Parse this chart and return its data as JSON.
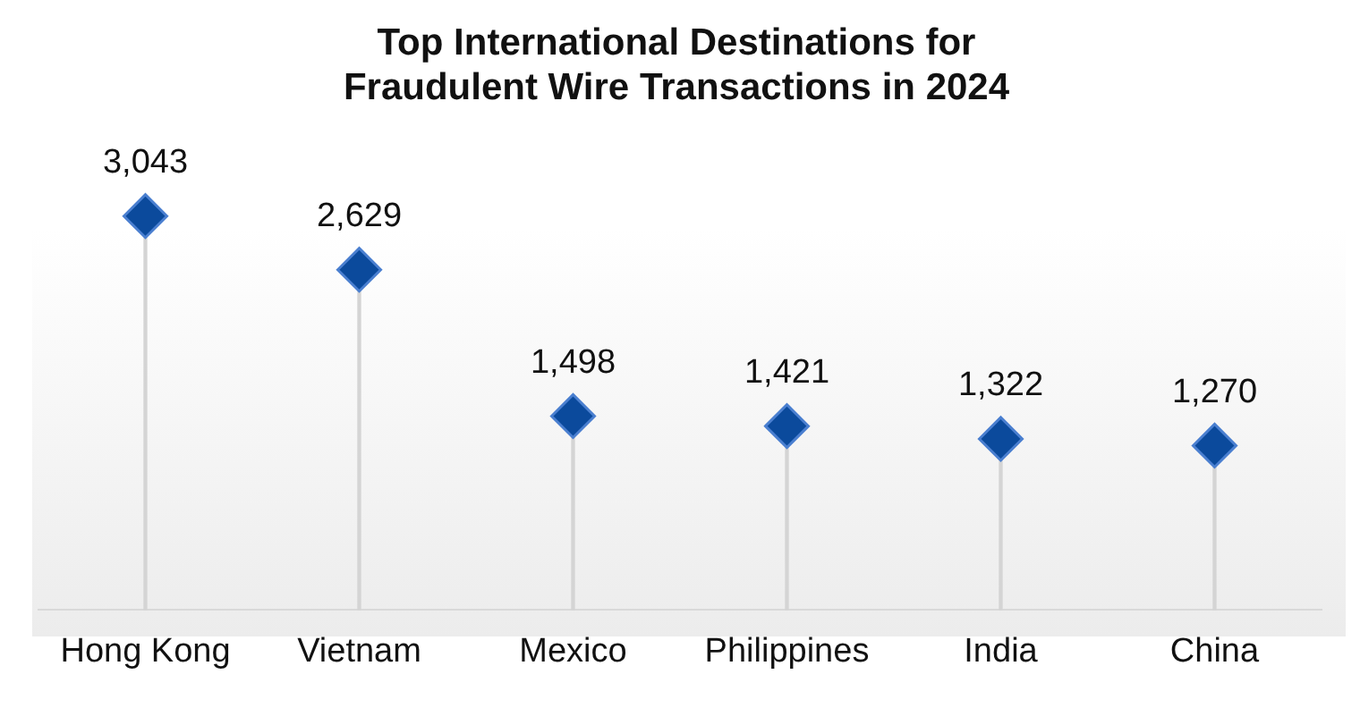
{
  "chart_data": {
    "type": "lollipop",
    "title": "Top International Destinations for\nFraudulent Wire Transactions in 2024",
    "categories": [
      "Hong Kong",
      "Vietnam",
      "Mexico",
      "Philippines",
      "India",
      "China"
    ],
    "series": [
      {
        "color": "#0b4a9c",
        "values": [
          3043,
          2629,
          1498,
          1421,
          1322,
          1270
        ],
        "value_labels": [
          "3,043",
          "2,629",
          "1,498",
          "1,421",
          "1,322",
          "1,270"
        ]
      }
    ],
    "marker": "diamond",
    "legend": false,
    "grid": false
  }
}
